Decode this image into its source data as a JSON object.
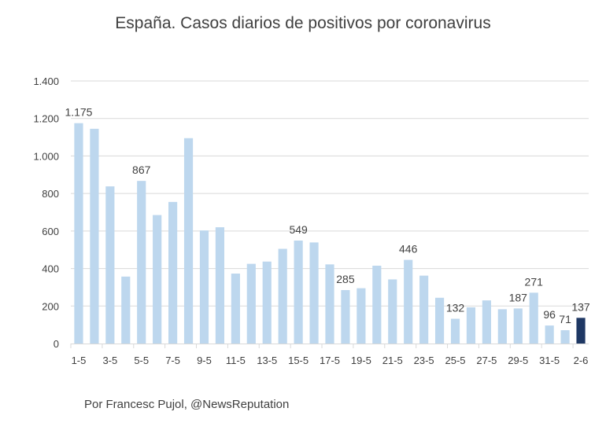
{
  "chart_data": {
    "type": "bar",
    "title": "España. Casos diarios de positivos por coronavirus",
    "footer": "Por Francesc Pujol, @NewsReputation",
    "ylim": [
      0,
      1400
    ],
    "yticks": [
      0,
      200,
      400,
      600,
      800,
      1000,
      1200,
      1400
    ],
    "ytick_labels": [
      "0",
      "200",
      "400",
      "600",
      "800",
      "1.000",
      "1.200",
      "1.400"
    ],
    "grid": true,
    "legend": "none",
    "categories": [
      "1-5",
      "2-5",
      "3-5",
      "4-5",
      "5-5",
      "6-5",
      "7-5",
      "8-5",
      "9-5",
      "10-5",
      "11-5",
      "12-5",
      "13-5",
      "14-5",
      "15-5",
      "16-5",
      "17-5",
      "18-5",
      "19-5",
      "20-5",
      "21-5",
      "22-5",
      "23-5",
      "24-5",
      "25-5",
      "26-5",
      "27-5",
      "28-5",
      "29-5",
      "30-5",
      "31-5",
      "1-6",
      "2-6"
    ],
    "xtick_labels": [
      "1-5",
      "",
      "3-5",
      "",
      "5-5",
      "",
      "7-5",
      "",
      "9-5",
      "",
      "11-5",
      "",
      "13-5",
      "",
      "15-5",
      "",
      "17-5",
      "",
      "19-5",
      "",
      "21-5",
      "",
      "23-5",
      "",
      "25-5",
      "",
      "27-5",
      "",
      "29-5",
      "",
      "31-5",
      "",
      "2-6"
    ],
    "values": [
      1175,
      1145,
      838,
      357,
      867,
      685,
      755,
      1095,
      603,
      620,
      373,
      425,
      437,
      505,
      549,
      539,
      422,
      285,
      295,
      415,
      342,
      446,
      362,
      244,
      132,
      193,
      230,
      183,
      187,
      271,
      96,
      71,
      137
    ],
    "data_labels": [
      {
        "index": 0,
        "text": "1.175"
      },
      {
        "index": 4,
        "text": "867"
      },
      {
        "index": 14,
        "text": "549"
      },
      {
        "index": 17,
        "text": "285"
      },
      {
        "index": 21,
        "text": "446"
      },
      {
        "index": 24,
        "text": "132"
      },
      {
        "index": 28,
        "text": "187"
      },
      {
        "index": 29,
        "text": "271"
      },
      {
        "index": 30,
        "text": "96"
      },
      {
        "index": 31,
        "text": "71"
      },
      {
        "index": 32,
        "text": "137"
      }
    ],
    "bar_color": "#bdd7ee",
    "highlight_color": "#1f3864",
    "highlight_index": 32,
    "grid_color": "#d9d9d9",
    "text_color": "#404040"
  }
}
